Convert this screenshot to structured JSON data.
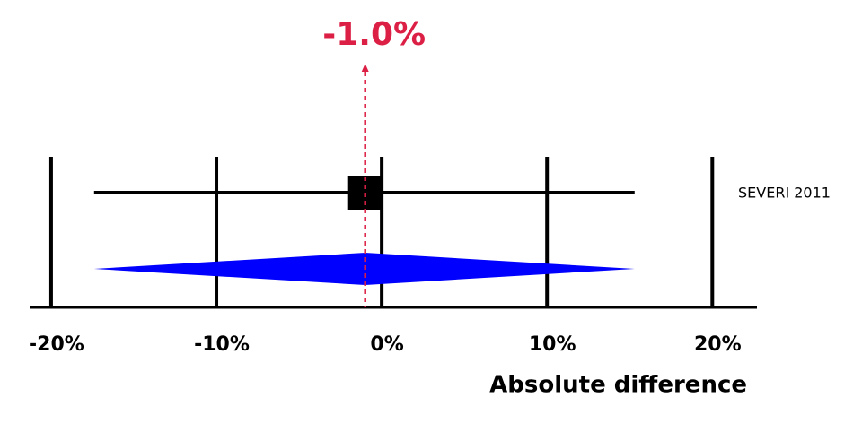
{
  "chart_data": {
    "type": "forest",
    "x_label": "Absolute difference",
    "xlim": [
      -21.3,
      22.7
    ],
    "xticks": [
      {
        "value": -20,
        "label": "-20%"
      },
      {
        "value": -10,
        "label": "-10%"
      },
      {
        "value": 0,
        "label": "0%"
      },
      {
        "value": 10,
        "label": "10%"
      },
      {
        "value": 20,
        "label": "20%"
      }
    ],
    "studies": [
      {
        "name": "SEVERI 2011",
        "estimate": -1.0,
        "ci": [
          -17.4,
          15.3
        ],
        "color": "#000000"
      }
    ],
    "pooled": {
      "estimate": -1.0,
      "value_label": "-1.0%",
      "ci": [
        -17.4,
        15.3
      ],
      "color": "#0000ff"
    },
    "annotation_color": "#dc1f45"
  }
}
